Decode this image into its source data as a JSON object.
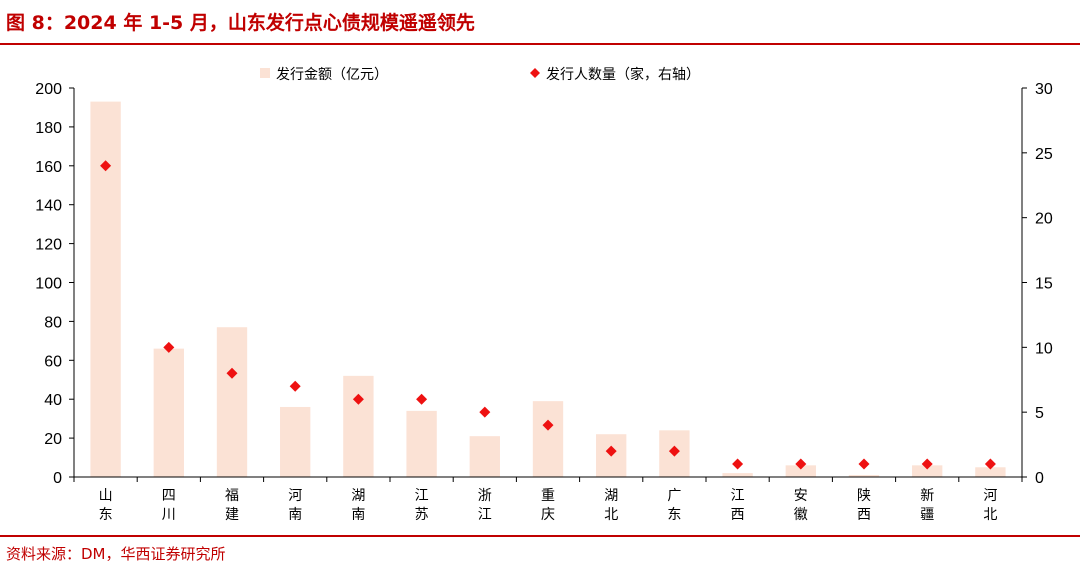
{
  "header": {
    "title": "图 8：2024 年 1-5 月，山东发行点心债规模遥遥领先"
  },
  "footer": {
    "source": "资料来源：DM，华西证券研究所"
  },
  "colors": {
    "accent": "#c00000",
    "bar": "#fbe2d5",
    "marker": "#ee1111"
  },
  "chart_data": {
    "type": "bar",
    "categories": [
      "山东",
      "四川",
      "福建",
      "河南",
      "湖南",
      "江苏",
      "浙江",
      "重庆",
      "湖北",
      "广东",
      "江西",
      "安徽",
      "陕西",
      "新疆",
      "河北"
    ],
    "series": [
      {
        "name": "发行金额（亿元）",
        "type": "bar",
        "axis": "left",
        "values": [
          193,
          66,
          77,
          36,
          52,
          34,
          21,
          39,
          22,
          24,
          2,
          6,
          1,
          6,
          5
        ]
      },
      {
        "name": "发行人数量（家，右轴）",
        "type": "scatter",
        "axis": "right",
        "values": [
          24,
          10,
          8,
          7,
          6,
          6,
          5,
          4,
          2,
          2,
          1,
          1,
          1,
          1,
          1
        ]
      }
    ],
    "ylim": [
      0,
      200
    ],
    "y_ticks": [
      0,
      20,
      40,
      60,
      80,
      100,
      120,
      140,
      160,
      180,
      200
    ],
    "y2lim": [
      0,
      30
    ],
    "y2_ticks": [
      0,
      5,
      10,
      15,
      20,
      25,
      30
    ],
    "legend_position": "top",
    "grid": false
  }
}
